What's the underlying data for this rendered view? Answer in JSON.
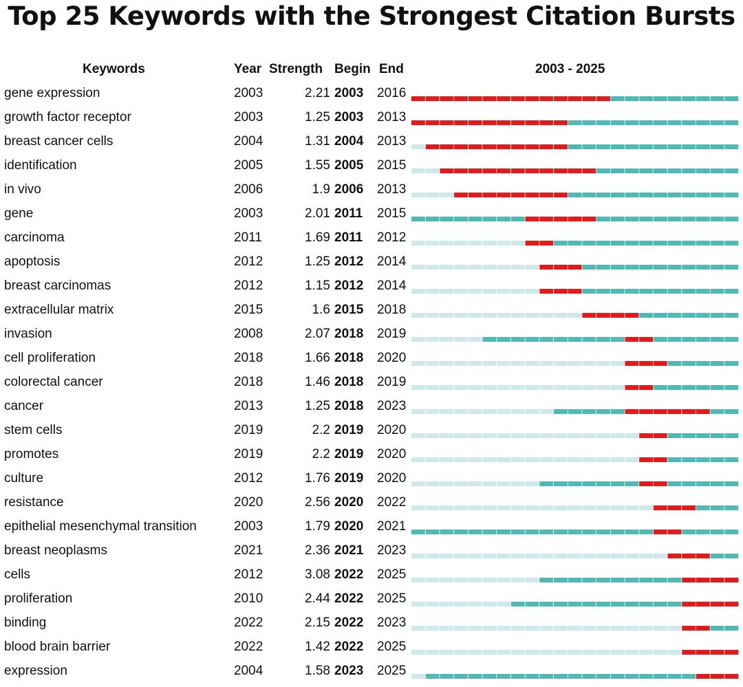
{
  "chart_data": {
    "type": "table",
    "title": "Top 25 Keywords with the Strongest Citation Bursts",
    "columns": {
      "keyword": "Keywords",
      "year": "Year",
      "strength": "Strength",
      "begin": "Begin",
      "end": "End",
      "range": "2003 - 2025"
    },
    "range_start": 2003,
    "range_end": 2025,
    "colors": {
      "burst": "#e4191c",
      "active": "#4fb9b6",
      "inactive": "#cfe9ea",
      "text": "#111111"
    },
    "rows": [
      {
        "keyword": "gene expression",
        "year": "2003",
        "strength": "2.21",
        "begin": "2003",
        "end": "2016"
      },
      {
        "keyword": "growth factor receptor",
        "year": "2003",
        "strength": "1.25",
        "begin": "2003",
        "end": "2013"
      },
      {
        "keyword": "breast cancer cells",
        "year": "2004",
        "strength": "1.31",
        "begin": "2004",
        "end": "2013"
      },
      {
        "keyword": "identification",
        "year": "2005",
        "strength": "1.55",
        "begin": "2005",
        "end": "2015"
      },
      {
        "keyword": "in vivo",
        "year": "2006",
        "strength": "1.9",
        "begin": "2006",
        "end": "2013"
      },
      {
        "keyword": "gene",
        "year": "2003",
        "strength": "2.01",
        "begin": "2011",
        "end": "2015"
      },
      {
        "keyword": "carcinoma",
        "year": "2011",
        "strength": "1.69",
        "begin": "2011",
        "end": "2012"
      },
      {
        "keyword": "apoptosis",
        "year": "2012",
        "strength": "1.25",
        "begin": "2012",
        "end": "2014"
      },
      {
        "keyword": "breast carcinomas",
        "year": "2012",
        "strength": "1.15",
        "begin": "2012",
        "end": "2014"
      },
      {
        "keyword": "extracellular matrix",
        "year": "2015",
        "strength": "1.6",
        "begin": "2015",
        "end": "2018"
      },
      {
        "keyword": "invasion",
        "year": "2008",
        "strength": "2.07",
        "begin": "2018",
        "end": "2019"
      },
      {
        "keyword": "cell proliferation",
        "year": "2018",
        "strength": "1.66",
        "begin": "2018",
        "end": "2020"
      },
      {
        "keyword": "colorectal cancer",
        "year": "2018",
        "strength": "1.46",
        "begin": "2018",
        "end": "2019"
      },
      {
        "keyword": "cancer",
        "year": "2013",
        "strength": "1.25",
        "begin": "2018",
        "end": "2023"
      },
      {
        "keyword": "stem cells",
        "year": "2019",
        "strength": "2.2",
        "begin": "2019",
        "end": "2020"
      },
      {
        "keyword": "promotes",
        "year": "2019",
        "strength": "2.2",
        "begin": "2019",
        "end": "2020"
      },
      {
        "keyword": "culture",
        "year": "2012",
        "strength": "1.76",
        "begin": "2019",
        "end": "2020"
      },
      {
        "keyword": "resistance",
        "year": "2020",
        "strength": "2.56",
        "begin": "2020",
        "end": "2022"
      },
      {
        "keyword": "epithelial mesenchymal transition",
        "year": "2003",
        "strength": "1.79",
        "begin": "2020",
        "end": "2021"
      },
      {
        "keyword": "breast neoplasms",
        "year": "2021",
        "strength": "2.36",
        "begin": "2021",
        "end": "2023"
      },
      {
        "keyword": "cells",
        "year": "2012",
        "strength": "3.08",
        "begin": "2022",
        "end": "2025"
      },
      {
        "keyword": "proliferation",
        "year": "2010",
        "strength": "2.44",
        "begin": "2022",
        "end": "2025"
      },
      {
        "keyword": "binding",
        "year": "2022",
        "strength": "2.15",
        "begin": "2022",
        "end": "2023"
      },
      {
        "keyword": "blood brain barrier",
        "year": "2022",
        "strength": "1.42",
        "begin": "2022",
        "end": "2025"
      },
      {
        "keyword": "expression",
        "year": "2004",
        "strength": "1.58",
        "begin": "2023",
        "end": "2025"
      }
    ]
  }
}
